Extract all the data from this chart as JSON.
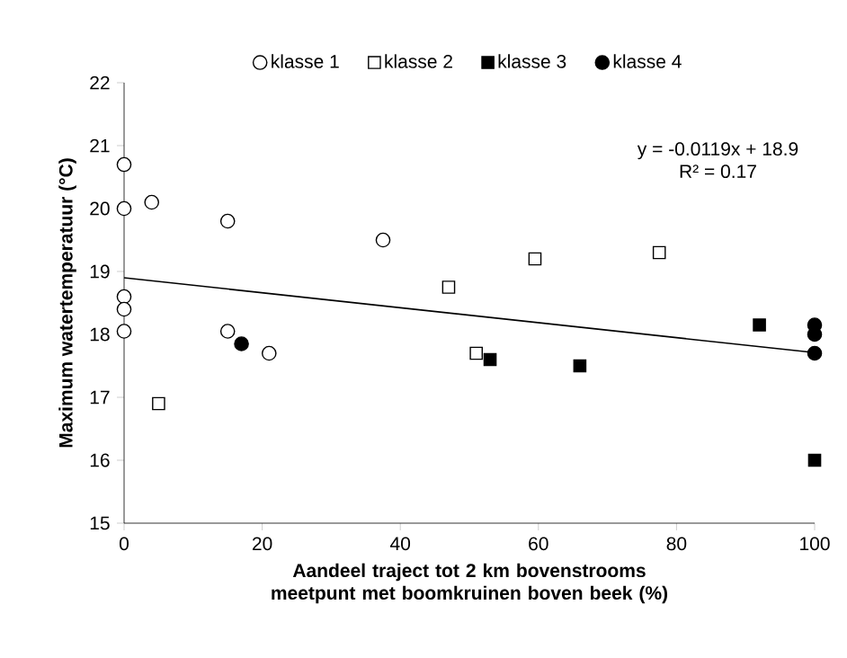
{
  "chart_data": {
    "type": "scatter",
    "xlabel": "Aandeel traject tot 2 km bovenstrooms meetpunt met boomkruinen boven beek (%)",
    "ylabel": "Maximum watertemperatuur (°C)",
    "annotations": [
      "y = -0.0119x + 18.9",
      "R² = 0.17"
    ],
    "xlim": [
      0,
      100
    ],
    "ylim": [
      15,
      22
    ],
    "xticks": [
      0,
      20,
      40,
      60,
      80,
      100
    ],
    "yticks": [
      15,
      16,
      17,
      18,
      19,
      20,
      21,
      22
    ],
    "legend": "top",
    "grid": false,
    "series": [
      {
        "name": "klasse 1",
        "marker": "circle",
        "color": "#ffffff",
        "x": [
          0,
          0,
          4,
          15,
          37.5,
          0,
          0,
          0,
          15,
          21
        ],
        "values": [
          20.7,
          20.0,
          20.1,
          19.8,
          19.5,
          18.6,
          18.4,
          18.05,
          18.05,
          17.7
        ]
      },
      {
        "name": "klasse 2",
        "marker": "square",
        "color": "#ffffff",
        "x": [
          5,
          47,
          51,
          59.5,
          77.5
        ],
        "values": [
          16.9,
          18.75,
          17.7,
          19.2,
          19.3
        ]
      },
      {
        "name": "klasse 3",
        "marker": "square",
        "color": "#000000",
        "x": [
          53,
          66,
          92,
          100
        ],
        "values": [
          17.6,
          17.5,
          18.15,
          16.0
        ]
      },
      {
        "name": "klasse 4",
        "marker": "circle",
        "color": "#000000",
        "x": [
          17,
          100,
          100,
          100
        ],
        "values": [
          17.85,
          18.15,
          18.0,
          17.7
        ]
      },
      {
        "type": "line",
        "marker": "none",
        "color": "#000000",
        "x": [
          0,
          100
        ],
        "values": [
          18.9,
          17.71
        ]
      }
    ]
  }
}
